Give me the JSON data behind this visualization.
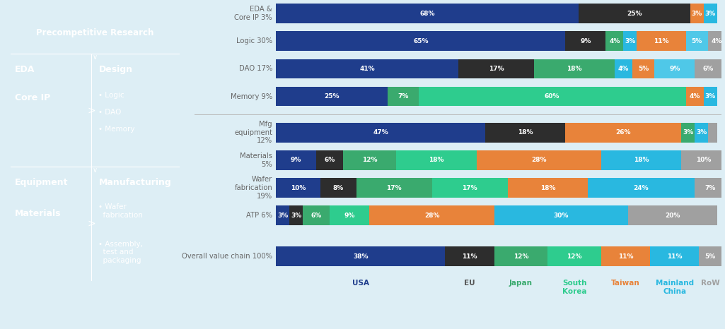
{
  "rows": [
    {
      "label": "EDA &\nCore IP 3%",
      "values": [
        68,
        25,
        3,
        3
      ],
      "colors": [
        "#1f3d8c",
        "#2d2d2d",
        "#e8833a",
        "#29b8e0"
      ]
    },
    {
      "label": "Logic 30%",
      "values": [
        65,
        9,
        4,
        3,
        11,
        5,
        4
      ],
      "colors": [
        "#1f3d8c",
        "#2d2d2d",
        "#3aaa6e",
        "#29b8e0",
        "#e8833a",
        "#4fc8e8",
        "#a0a0a0"
      ]
    },
    {
      "label": "DAO 17%",
      "values": [
        41,
        17,
        18,
        4,
        5,
        9,
        6
      ],
      "colors": [
        "#1f3d8c",
        "#2d2d2d",
        "#3aaa6e",
        "#29b8e0",
        "#e8833a",
        "#4fc8e8",
        "#a0a0a0"
      ]
    },
    {
      "label": "Memory 9%",
      "values": [
        25,
        7,
        60,
        4,
        3
      ],
      "colors": [
        "#1f3d8c",
        "#3aaa6e",
        "#2ecc8e",
        "#e8833a",
        "#29b8e0"
      ]
    },
    {
      "label": "Mfg\nequipment\n12%",
      "values": [
        47,
        18,
        26,
        3,
        3,
        2
      ],
      "colors": [
        "#1f3d8c",
        "#2d2d2d",
        "#e8833a",
        "#3aaa6e",
        "#29b8e0",
        "#a0a0a0"
      ]
    },
    {
      "label": "Materials\n5%",
      "values": [
        9,
        6,
        12,
        18,
        28,
        18,
        10
      ],
      "colors": [
        "#1f3d8c",
        "#2d2d2d",
        "#3aaa6e",
        "#2ecc8e",
        "#e8833a",
        "#29b8e0",
        "#a0a0a0"
      ]
    },
    {
      "label": "Wafer\nfabrication\n19%",
      "values": [
        10,
        8,
        17,
        17,
        18,
        24,
        7
      ],
      "colors": [
        "#1f3d8c",
        "#2d2d2d",
        "#3aaa6e",
        "#2ecc8e",
        "#e8833a",
        "#29b8e0",
        "#a0a0a0"
      ]
    },
    {
      "label": "ATP 6%",
      "values": [
        3,
        3,
        6,
        9,
        28,
        30,
        20
      ],
      "colors": [
        "#1f3d8c",
        "#2d2d2d",
        "#3aaa6e",
        "#2ecc8e",
        "#e8833a",
        "#29b8e0",
        "#a0a0a0"
      ]
    }
  ],
  "overall": {
    "label": "Overall value chain 100%",
    "values": [
      38,
      11,
      12,
      12,
      11,
      11,
      5
    ],
    "colors": [
      "#1f3d8c",
      "#2d2d2d",
      "#3aaa6e",
      "#2ecc8e",
      "#e8833a",
      "#29b8e0",
      "#a0a0a0"
    ]
  },
  "legend_labels": [
    "USA",
    "EU",
    "Japan",
    "South\nKorea",
    "Taiwan",
    "Mainland\nChina",
    "RoW"
  ],
  "legend_colors": [
    "#1f3d8c",
    "#555555",
    "#3aaa6e",
    "#2ecc8e",
    "#e8833a",
    "#29b8e0",
    "#a0a0a0"
  ],
  "bg_color": "#ddeef5",
  "panel_color": "#1a4496",
  "text_label_color": "#666666"
}
